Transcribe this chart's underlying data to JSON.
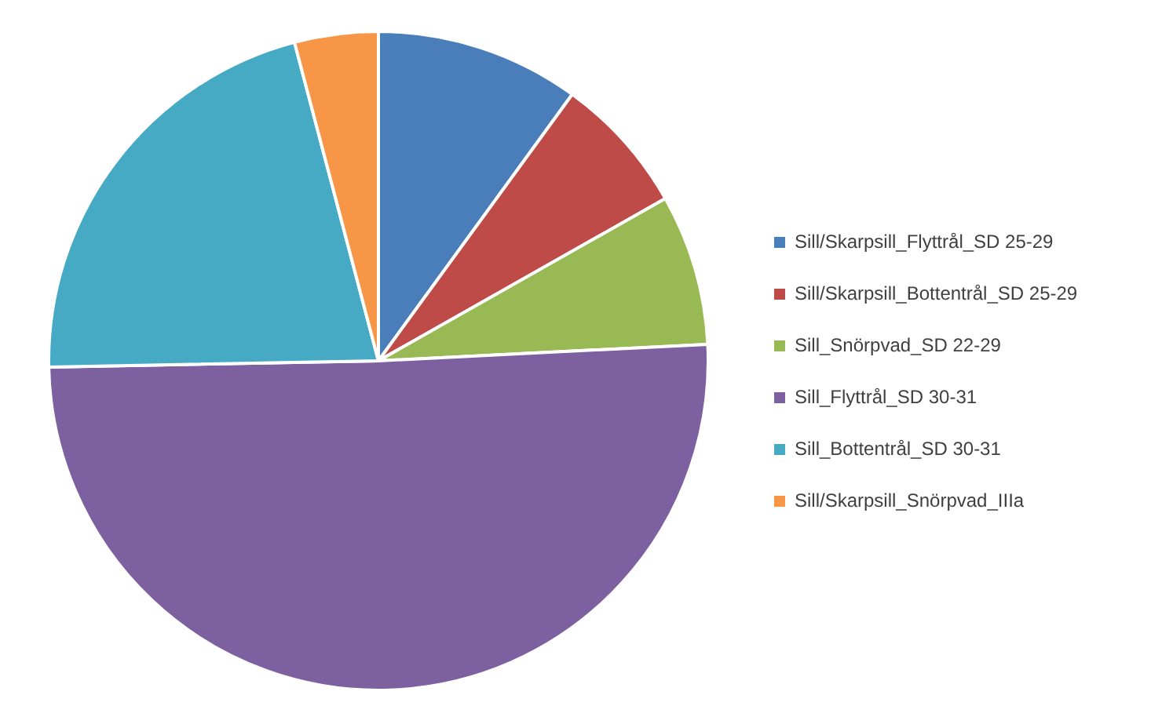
{
  "chart_data": {
    "type": "pie",
    "categories": [
      "Sill/Skarpsill_Flyttrål_SD 25-29",
      "Sill/Skarpsill_Bottentrål_SD 25-29",
      "Sill_Snörpvad_SD 22-29",
      "Sill_Flyttrål_SD 30-31",
      "Sill_Bottentrål_SD 30-31",
      "Sill/Skarpsill_Snörpvad_IIIa"
    ],
    "values": [
      10,
      6.8,
      7.4,
      50.5,
      21.2,
      4.1
    ],
    "colors": [
      "#4a7ebb",
      "#be4b48",
      "#98b954",
      "#7d60a0",
      "#46aac5",
      "#f79646"
    ],
    "legend": "right"
  }
}
